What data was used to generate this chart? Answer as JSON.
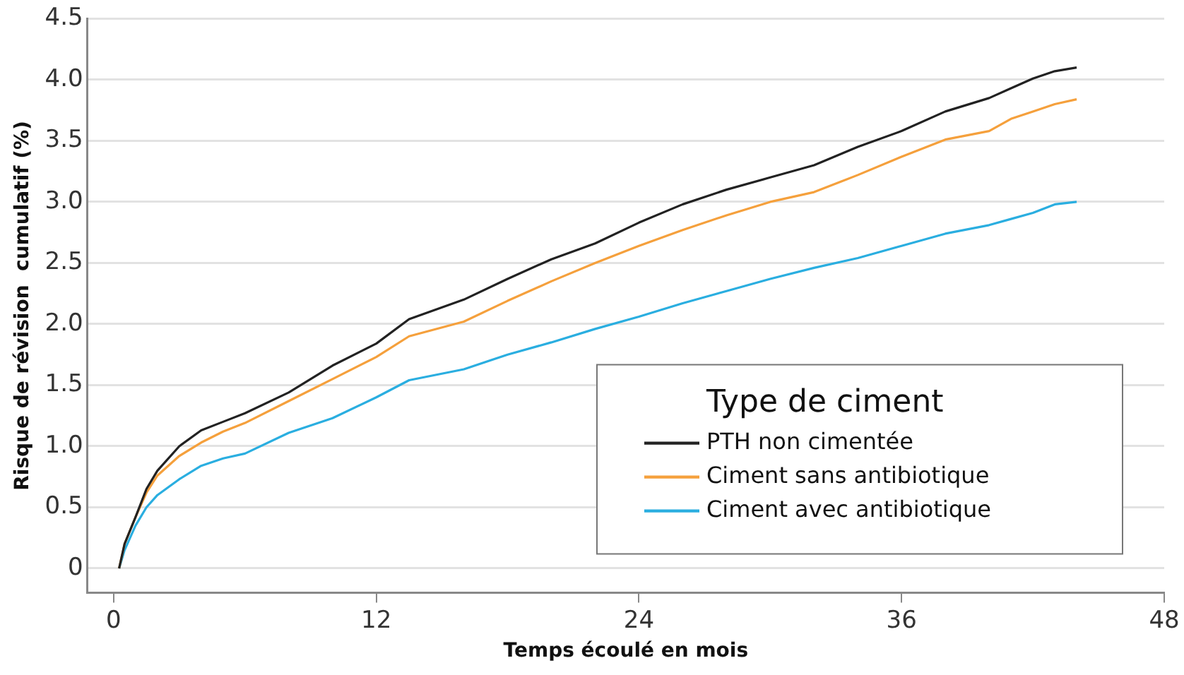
{
  "chart_data": {
    "type": "line",
    "xlabel": "Temps écoulé en mois",
    "ylabel": "Risque de révision  cumulatif (%)",
    "legend_title": "Type de ciment",
    "legend": "bottom right",
    "grid": "y",
    "marker": "none",
    "line_style": "solid",
    "xlim": [
      -1.2,
      48
    ],
    "xticks": [
      0,
      12,
      24,
      36,
      48
    ],
    "ylim": [
      -0.2,
      4.5
    ],
    "yticks": [
      0,
      0.5,
      {
        "value": 1,
        "label": "1.0"
      },
      1.5,
      {
        "value": 2,
        "label": "2.0"
      },
      2.5,
      {
        "value": 3,
        "label": "3.0"
      },
      3.5,
      {
        "value": 4,
        "label": "4.0"
      },
      4.5
    ],
    "x": [
      0.25,
      0.5,
      1,
      1.5,
      2,
      3,
      4,
      5,
      6,
      8,
      10,
      12,
      13.5,
      16,
      18,
      20,
      22,
      24,
      26,
      28,
      30,
      32,
      34,
      36,
      38,
      40,
      41,
      42,
      43,
      44
    ],
    "series": [
      {
        "name": "PTH non cimentée",
        "color": "#222222",
        "values": [
          0,
          0.2,
          0.42,
          0.65,
          0.8,
          1.0,
          1.13,
          1.2,
          1.27,
          1.44,
          1.66,
          1.84,
          2.04,
          2.2,
          2.37,
          2.53,
          2.66,
          2.83,
          2.98,
          3.1,
          3.2,
          3.3,
          3.45,
          3.58,
          3.74,
          3.85,
          3.93,
          4.01,
          4.07,
          4.1
        ]
      },
      {
        "name": "Ciment sans antibiotique",
        "color": "#f5a03c",
        "values": [
          0,
          0.2,
          0.42,
          0.62,
          0.76,
          0.92,
          1.03,
          1.12,
          1.19,
          1.37,
          1.55,
          1.73,
          1.9,
          2.02,
          2.19,
          2.35,
          2.5,
          2.64,
          2.77,
          2.89,
          3.0,
          3.08,
          3.22,
          3.37,
          3.51,
          3.58,
          3.68,
          3.74,
          3.8,
          3.84
        ]
      },
      {
        "name": "Ciment avec antibiotique",
        "color": "#2aaee0",
        "values": [
          0,
          0.15,
          0.35,
          0.5,
          0.6,
          0.73,
          0.84,
          0.9,
          0.94,
          1.11,
          1.23,
          1.4,
          1.54,
          1.63,
          1.75,
          1.85,
          1.96,
          2.06,
          2.17,
          2.27,
          2.37,
          2.46,
          2.54,
          2.64,
          2.74,
          2.81,
          2.86,
          2.91,
          2.98,
          3.0
        ]
      }
    ]
  }
}
